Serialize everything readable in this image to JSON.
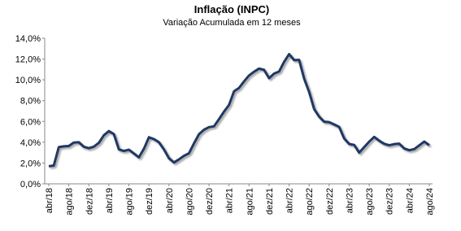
{
  "chart_data": {
    "type": "line",
    "title": "Inflação (INPC)",
    "subtitle": "Variação Acumulada em 12 meses",
    "categories": [
      "abr/18",
      null,
      null,
      null,
      "ago/18",
      null,
      null,
      null,
      "dez/18",
      null,
      null,
      null,
      "abr/19",
      null,
      null,
      null,
      "ago/19",
      null,
      null,
      null,
      "dez/19",
      null,
      null,
      null,
      "abr/20",
      null,
      null,
      null,
      "ago/20",
      null,
      null,
      null,
      "dez/20",
      null,
      null,
      null,
      "abr/21",
      null,
      null,
      null,
      "ago/21",
      null,
      null,
      null,
      "dez/21",
      null,
      null,
      null,
      "abr/22",
      null,
      null,
      null,
      "ago/22",
      null,
      null,
      null,
      "dez/22",
      null,
      null,
      null,
      "abr/23",
      null,
      null,
      null,
      "ago/23",
      null,
      null,
      null,
      "dez/23",
      null,
      null,
      null,
      "abr/24",
      null,
      null,
      null,
      "ago/24"
    ],
    "series": [
      {
        "name": "INPC",
        "color": "#1f3864",
        "values": [
          1.69,
          1.76,
          3.53,
          3.61,
          3.64,
          3.97,
          4.0,
          3.56,
          3.43,
          3.57,
          3.94,
          4.67,
          5.07,
          4.78,
          3.31,
          3.16,
          3.28,
          2.92,
          2.55,
          3.37,
          4.48,
          4.3,
          4.0,
          3.31,
          2.46,
          2.05,
          2.35,
          2.69,
          2.94,
          3.89,
          4.77,
          5.2,
          5.45,
          5.53,
          6.22,
          6.94,
          7.59,
          8.9,
          9.22,
          9.85,
          10.42,
          10.78,
          11.08,
          10.96,
          10.16,
          10.6,
          10.8,
          11.73,
          12.47,
          11.9,
          11.92,
          10.12,
          8.83,
          7.19,
          6.46,
          5.97,
          5.93,
          5.71,
          5.47,
          4.36,
          3.83,
          3.74,
          3.0,
          3.53,
          4.06,
          4.51,
          4.14,
          3.85,
          3.71,
          3.82,
          3.86,
          3.4,
          3.23,
          3.34,
          3.7,
          4.06,
          3.71
        ]
      }
    ],
    "ylim": [
      0,
      14
    ],
    "yticks": [
      {
        "value": 0,
        "label": "0,0%"
      },
      {
        "value": 2,
        "label": "2,0%"
      },
      {
        "value": 4,
        "label": "4,0%"
      },
      {
        "value": 6,
        "label": "6,0%"
      },
      {
        "value": 8,
        "label": "8,0%"
      },
      {
        "value": 10,
        "label": "10,0%"
      },
      {
        "value": 12,
        "label": "12,0%"
      },
      {
        "value": 14,
        "label": "14,0%"
      }
    ],
    "grid": false
  }
}
